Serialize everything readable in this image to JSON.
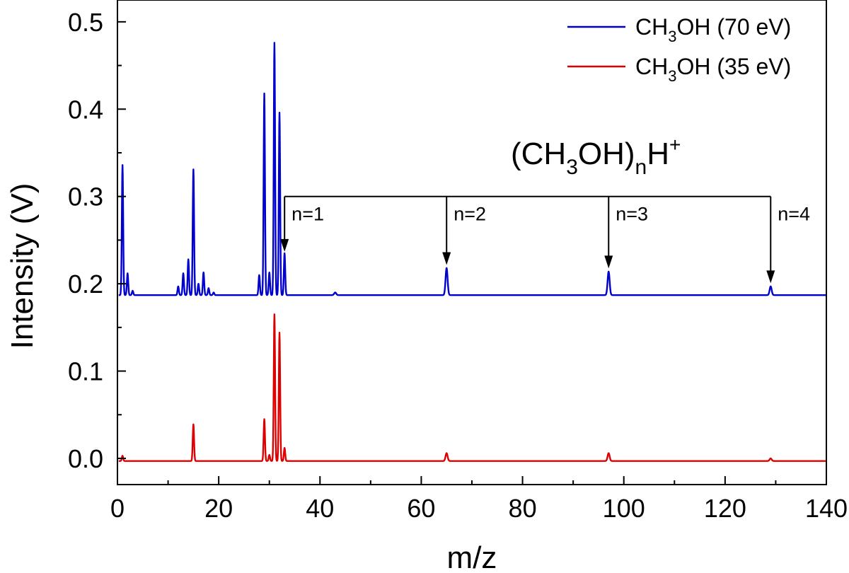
{
  "chart_data": {
    "type": "line",
    "xlabel": "m/z",
    "ylabel": "Intensity (V)",
    "xlim": [
      0,
      140
    ],
    "ylim": [
      -0.03,
      0.525
    ],
    "x_ticks": [
      0,
      20,
      40,
      60,
      80,
      100,
      120,
      140
    ],
    "y_ticks": [
      0.0,
      0.1,
      0.2,
      0.3,
      0.4,
      0.5
    ],
    "x_tick_labels": [
      "0",
      "20",
      "40",
      "60",
      "80",
      "100",
      "120",
      "140"
    ],
    "y_tick_labels": [
      "0.0",
      "0.1",
      "0.2",
      "0.3",
      "0.4",
      "0.5"
    ],
    "grid": false,
    "legend_position": "top-right",
    "series": [
      {
        "name": "CH3OH (70 eV)",
        "legend": {
          "pre": "CH",
          "sub": "3",
          "post": "OH (70 eV)"
        },
        "color": "#0000cc",
        "baseline": 0.187,
        "peaks": [
          [
            1,
            0.336
          ],
          [
            2,
            0.212
          ],
          [
            3,
            0.192
          ],
          [
            12,
            0.197
          ],
          [
            13,
            0.212
          ],
          [
            14,
            0.228
          ],
          [
            15,
            0.331
          ],
          [
            16,
            0.2
          ],
          [
            17,
            0.213
          ],
          [
            18,
            0.195
          ],
          [
            19,
            0.19
          ],
          [
            28,
            0.21
          ],
          [
            29,
            0.418
          ],
          [
            30,
            0.213
          ],
          [
            31,
            0.476
          ],
          [
            32,
            0.396
          ],
          [
            33,
            0.235
          ],
          [
            43,
            0.19
          ],
          [
            65,
            0.218
          ],
          [
            97,
            0.214
          ],
          [
            129,
            0.197
          ]
        ]
      },
      {
        "name": "CH3OH (35 eV)",
        "legend": {
          "pre": "CH",
          "sub": "3",
          "post": "OH (35 eV)"
        },
        "color": "#dd0000",
        "baseline": -0.003,
        "peaks": [
          [
            1,
            0.003
          ],
          [
            15,
            0.039
          ],
          [
            29,
            0.045
          ],
          [
            30,
            0.004
          ],
          [
            31,
            0.165
          ],
          [
            32,
            0.144
          ],
          [
            33,
            0.012
          ],
          [
            65,
            0.006
          ],
          [
            97,
            0.006
          ],
          [
            129,
            0.0
          ]
        ]
      }
    ],
    "annotations": {
      "formula": {
        "pre": "(CH",
        "sub1": "3",
        "mid": "OH)",
        "sub2": "n",
        "base": "H",
        "sup": "+"
      },
      "bracket_y": 0.3,
      "arrows": [
        {
          "label": "n=1",
          "x": 33,
          "tip_y": 0.235
        },
        {
          "label": "n=2",
          "x": 65,
          "tip_y": 0.22
        },
        {
          "label": "n=3",
          "x": 97,
          "tip_y": 0.216
        },
        {
          "label": "n=4",
          "x": 129,
          "tip_y": 0.199
        }
      ]
    }
  }
}
